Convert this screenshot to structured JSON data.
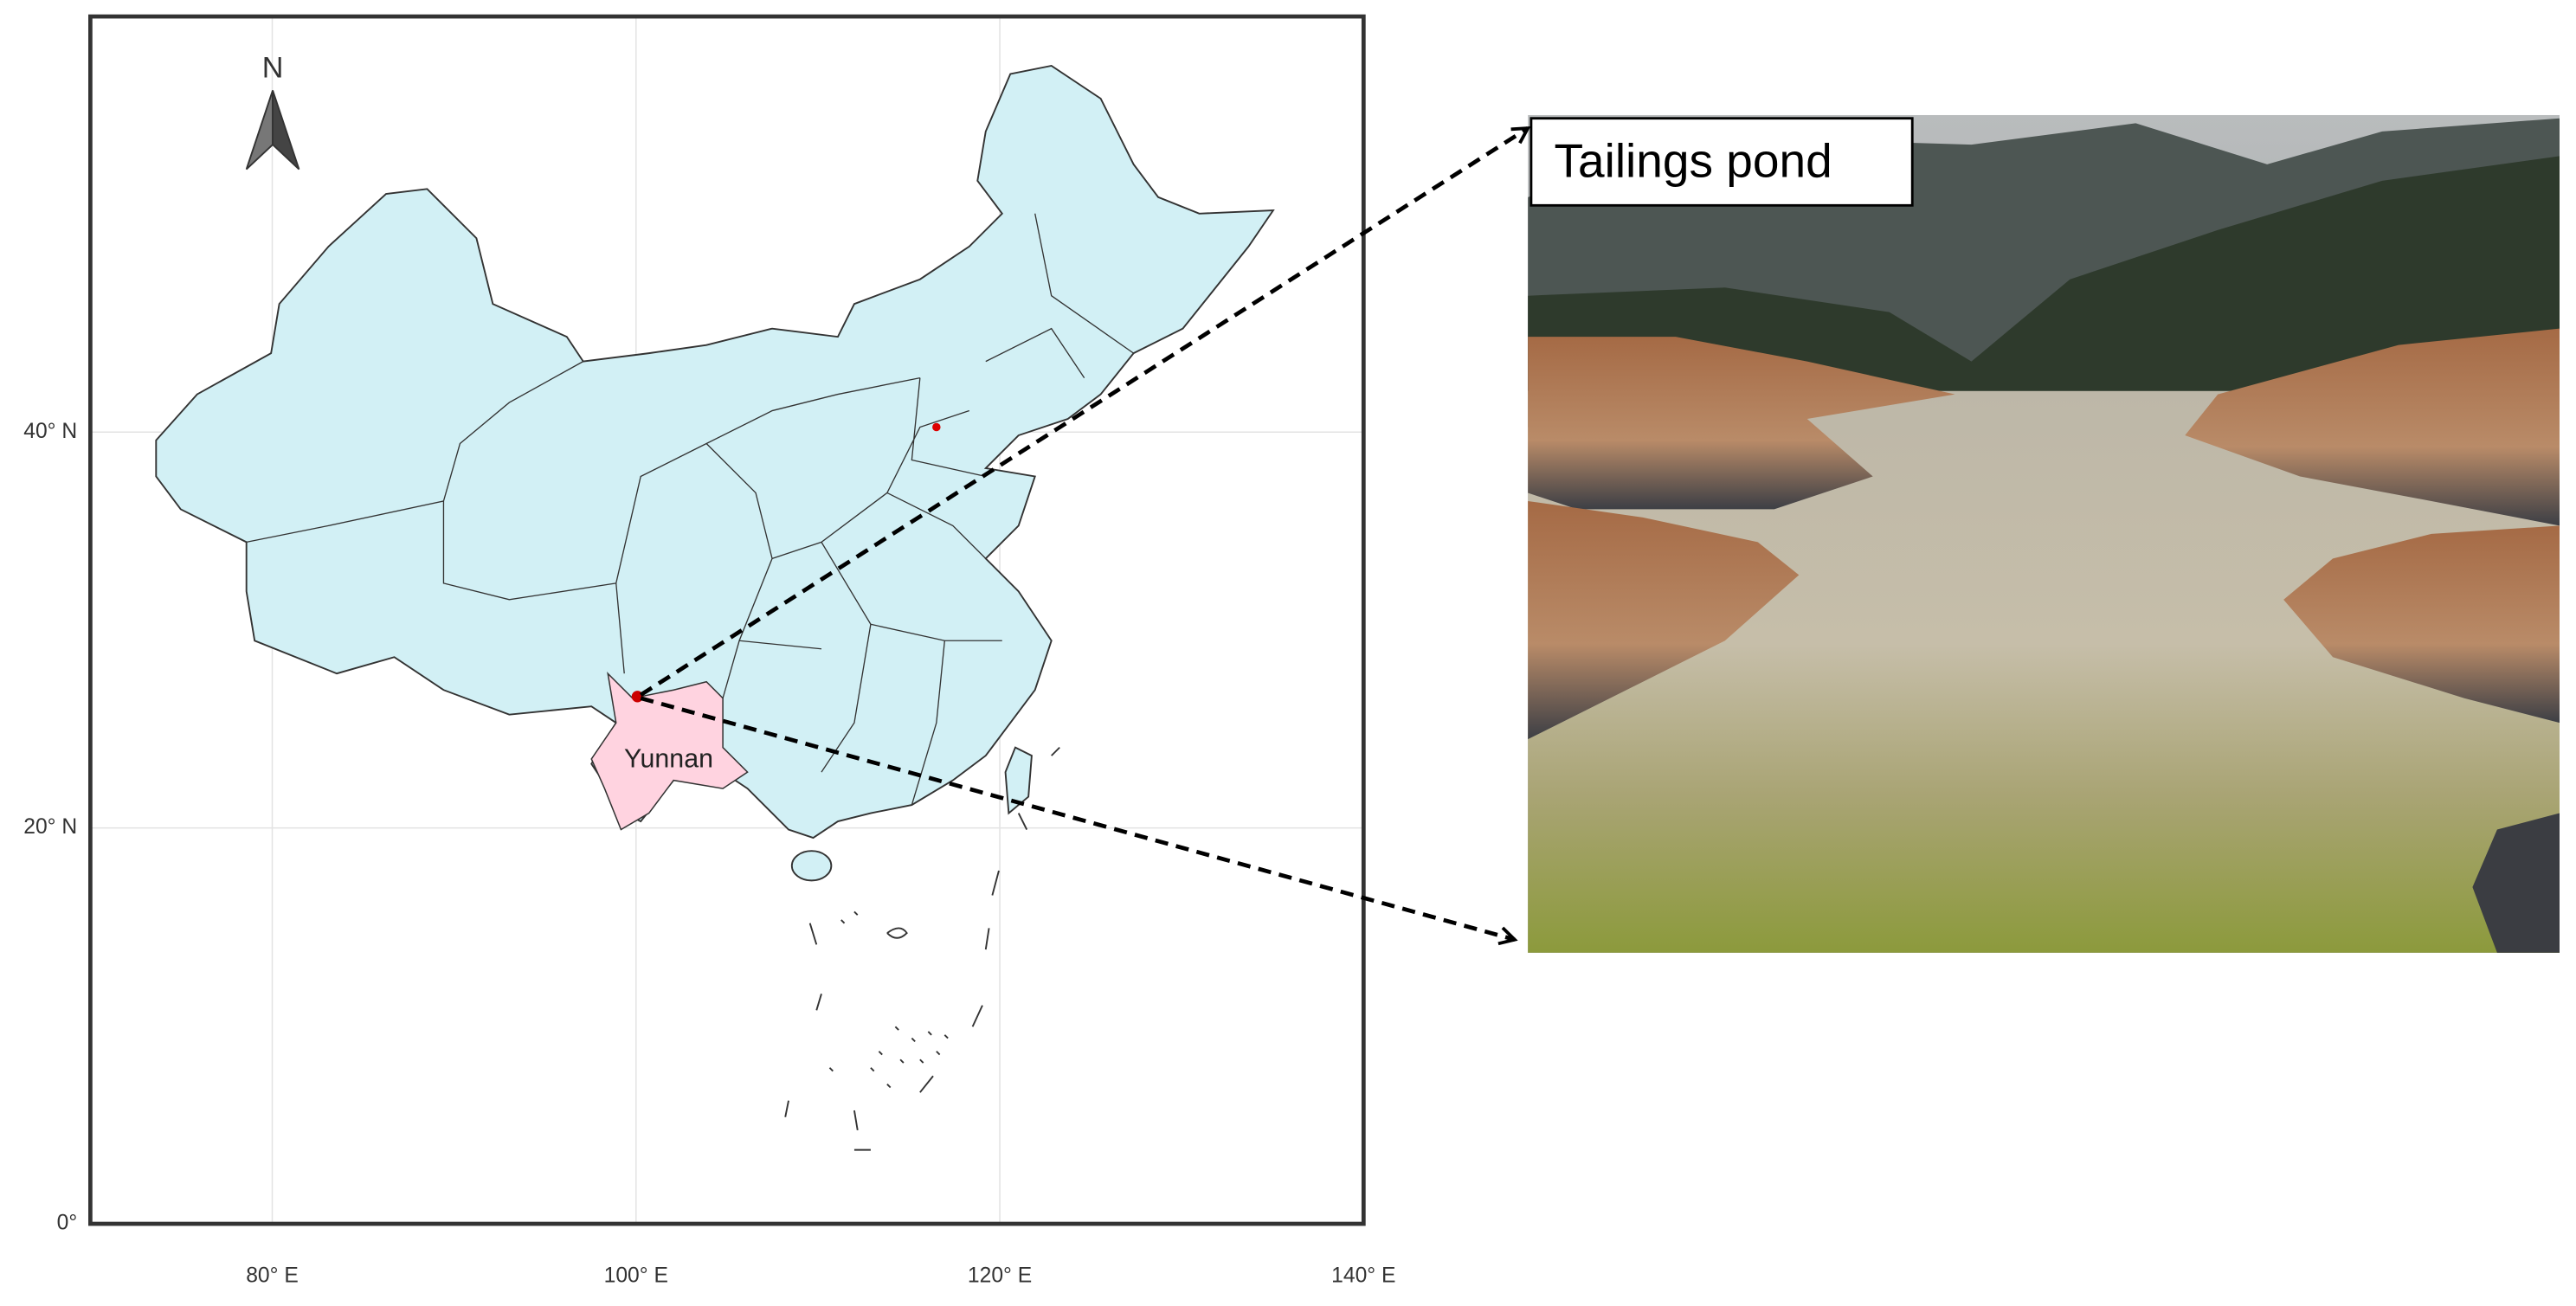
{
  "north_label": "N",
  "map": {
    "xlim": [
      70,
      140
    ],
    "ylim": [
      0,
      61
    ],
    "xticks": [
      {
        "value": 80,
        "label": "80° E"
      },
      {
        "value": 100,
        "label": "100° E"
      },
      {
        "value": 120,
        "label": "120° E"
      },
      {
        "value": 140,
        "label": "140° E"
      }
    ],
    "yticks": [
      {
        "value": 0,
        "label": "0°"
      },
      {
        "value": 20,
        "label": "20° N"
      },
      {
        "value": 40,
        "label": "40° N"
      }
    ],
    "grid": true,
    "region_label": "Yunnan"
  },
  "photo": {
    "label": "Tailings pond"
  }
}
